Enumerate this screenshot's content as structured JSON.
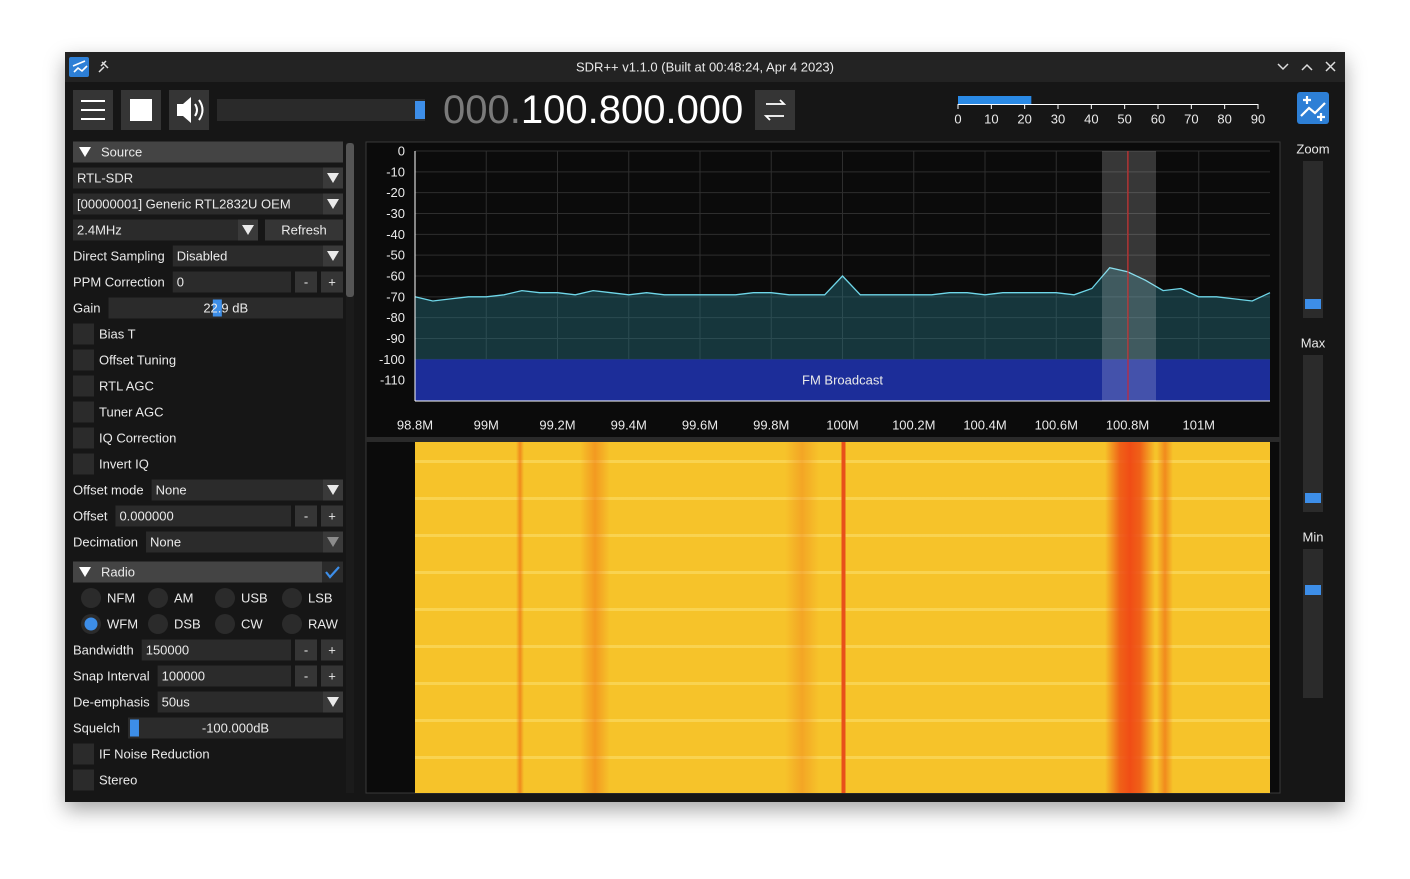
{
  "window": {
    "title": "SDR++ v1.1.0 (Built at 00:48:24, Apr 4 2023)"
  },
  "toolbar": {
    "frequency_dim": "000.",
    "frequency": "100.800.000"
  },
  "snr_meter": {
    "lim": [
      0,
      90
    ],
    "ticks": [
      0,
      10,
      20,
      30,
      40,
      50,
      60,
      70,
      80,
      90
    ],
    "value": 22
  },
  "sidebar": {
    "step_buttons": [
      "-",
      "+"
    ],
    "items": [
      {
        "kind": "header",
        "label": "Source"
      },
      {
        "kind": "combo",
        "value": "RTL-SDR"
      },
      {
        "kind": "combo",
        "value": "[00000001] Generic RTL2832U OEM"
      },
      {
        "kind": "combo-button",
        "value": "2.4MHz",
        "button": "Refresh"
      },
      {
        "kind": "labeled-combo",
        "label": "Direct Sampling",
        "value": "Disabled"
      },
      {
        "kind": "input",
        "label": "PPM Correction",
        "value": "0"
      },
      {
        "kind": "slider",
        "label": "Gain",
        "value": "22.9 dB"
      },
      {
        "kind": "checkbox",
        "label": "Bias T"
      },
      {
        "kind": "checkbox",
        "label": "Offset Tuning"
      },
      {
        "kind": "checkbox",
        "label": "RTL AGC"
      },
      {
        "kind": "checkbox",
        "label": "Tuner AGC"
      },
      {
        "kind": "checkbox",
        "label": "IQ Correction"
      },
      {
        "kind": "checkbox",
        "label": "Invert IQ"
      },
      {
        "kind": "labeled-combo",
        "label": "Offset mode",
        "value": "None"
      },
      {
        "kind": "input",
        "label": "Offset",
        "value": "0.000000",
        "disabled": true
      },
      {
        "kind": "labeled-combo",
        "label": "Decimation",
        "value": "None",
        "disabled": true
      },
      {
        "kind": "header",
        "label": "Radio",
        "checked": true
      },
      {
        "kind": "radios",
        "options": [
          "NFM",
          "AM",
          "USB",
          "LSB"
        ]
      },
      {
        "kind": "radios",
        "options": [
          "WFM",
          "DSB",
          "CW",
          "RAW"
        ],
        "selected": 0
      },
      {
        "kind": "input",
        "label": "Bandwidth",
        "value": "150000"
      },
      {
        "kind": "input",
        "label": "Snap Interval",
        "value": "100000"
      },
      {
        "kind": "labeled-combo",
        "label": "De-emphasis",
        "value": "50us"
      },
      {
        "kind": "slider",
        "label": "Squelch",
        "value": "-100.000dB"
      },
      {
        "kind": "checkbox",
        "label": "IF Noise Reduction"
      },
      {
        "kind": "checkbox",
        "label": "Stereo"
      }
    ]
  },
  "spectrum": {
    "type": "line",
    "color": "#6fd6e8",
    "grid": true,
    "band_label": "FM Broadcast",
    "xlim": [
      98.8,
      101.2
    ],
    "ylim": [
      -120,
      0
    ],
    "yticks": [
      0,
      -10,
      -20,
      -30,
      -40,
      -50,
      -60,
      -70,
      -80,
      -90,
      -100,
      -110
    ],
    "xticks": [
      {
        "value": 98.8,
        "label": "98.8M"
      },
      {
        "value": 99,
        "label": "99M"
      },
      {
        "value": 99.2,
        "label": "99.2M"
      },
      {
        "value": 99.4,
        "label": "99.4M"
      },
      {
        "value": 99.6,
        "label": "99.6M"
      },
      {
        "value": 99.8,
        "label": "99.8M"
      },
      {
        "value": 100,
        "label": "100M"
      },
      {
        "value": 100.2,
        "label": "100.2M"
      },
      {
        "value": 100.4,
        "label": "100.4M"
      },
      {
        "value": 100.6,
        "label": "100.6M"
      },
      {
        "value": 100.8,
        "label": "100.8M"
      },
      {
        "value": 101,
        "label": "101M"
      }
    ],
    "x": [
      98.8,
      98.85,
      98.9,
      98.95,
      99,
      99.05,
      99.1,
      99.15,
      99.2,
      99.25,
      99.3,
      99.35,
      99.4,
      99.45,
      99.5,
      99.55,
      99.6,
      99.65,
      99.7,
      99.75,
      99.8,
      99.85,
      99.9,
      99.95,
      100,
      100.05,
      100.1,
      100.15,
      100.2,
      100.25,
      100.3,
      100.35,
      100.4,
      100.45,
      100.5,
      100.55,
      100.6,
      100.65,
      100.7,
      100.75,
      100.8,
      100.85,
      100.9,
      100.95,
      101,
      101.05,
      101.1,
      101.15,
      101.2
    ],
    "values": [
      -70,
      -72,
      -71,
      -70,
      -70,
      -69,
      -67,
      -68,
      -68,
      -69,
      -67,
      -68,
      -69,
      -68,
      -69,
      -69,
      -69,
      -69,
      -69,
      -68,
      -68,
      -69,
      -69,
      -69,
      -60,
      -69,
      -69,
      -69,
      -69,
      -69,
      -68,
      -68,
      -69,
      -68,
      -68,
      -68,
      -68,
      -69,
      -66,
      -56,
      -58,
      -62,
      -67,
      -66,
      -70,
      -70,
      -71,
      -72,
      -68
    ]
  },
  "side_sliders": [
    "Zoom",
    "Max",
    "Min"
  ]
}
